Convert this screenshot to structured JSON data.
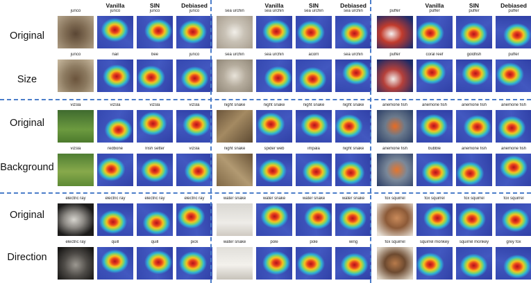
{
  "row_labels": [
    "Original",
    "Size",
    "Original",
    "Background",
    "Original",
    "Direction"
  ],
  "column_headers": [
    "Vanilla",
    "SIN",
    "Debiased"
  ],
  "panels": [
    {
      "rows": [
        [
          "junco",
          "junco",
          "junco",
          "junco"
        ],
        [
          "junco",
          "nail",
          "bee",
          "junco"
        ],
        [
          "vizsla",
          "vizsla",
          "vizsla",
          "vizsla"
        ],
        [
          "vizsla",
          "redbone",
          "Irish setter",
          "vizsla"
        ],
        [
          "electric ray",
          "electric ray",
          "electric ray",
          "electric ray"
        ],
        [
          "electric ray",
          "quill",
          "quill",
          "pick"
        ]
      ]
    },
    {
      "rows": [
        [
          "sea urchin",
          "sea urchin",
          "sea urchin",
          "sea urchin"
        ],
        [
          "sea urchin",
          "sea urchin",
          "acorn",
          "sea urchin"
        ],
        [
          "night snake",
          "night snake",
          "night snake",
          "night snake"
        ],
        [
          "night snake",
          "spider web",
          "impala",
          "night snake"
        ],
        [
          "water snake",
          "water snake",
          "water snake",
          "water snake"
        ],
        [
          "water snake",
          "pole",
          "pole",
          "wing"
        ]
      ]
    },
    {
      "rows": [
        [
          "puffer",
          "puffer",
          "puffer",
          "puffer"
        ],
        [
          "puffer",
          "coral reef",
          "goldfish",
          "puffer"
        ],
        [
          "anemone fish",
          "anemone fish",
          "anemone fish",
          "anemone fish"
        ],
        [
          "anemone fish",
          "bubble",
          "anemone fish",
          "anemone fish"
        ],
        [
          "fox squirrel",
          "fox squirrel",
          "fox squirrel",
          "fox squirrel"
        ],
        [
          "fox squirrel",
          "squirrel monkey",
          "squirrel monkey",
          "grey fox"
        ]
      ]
    }
  ],
  "colors": {
    "divider": "#4a7cc9",
    "heat_background": "#3b4fb8",
    "heat_hot": "#d7261e"
  }
}
